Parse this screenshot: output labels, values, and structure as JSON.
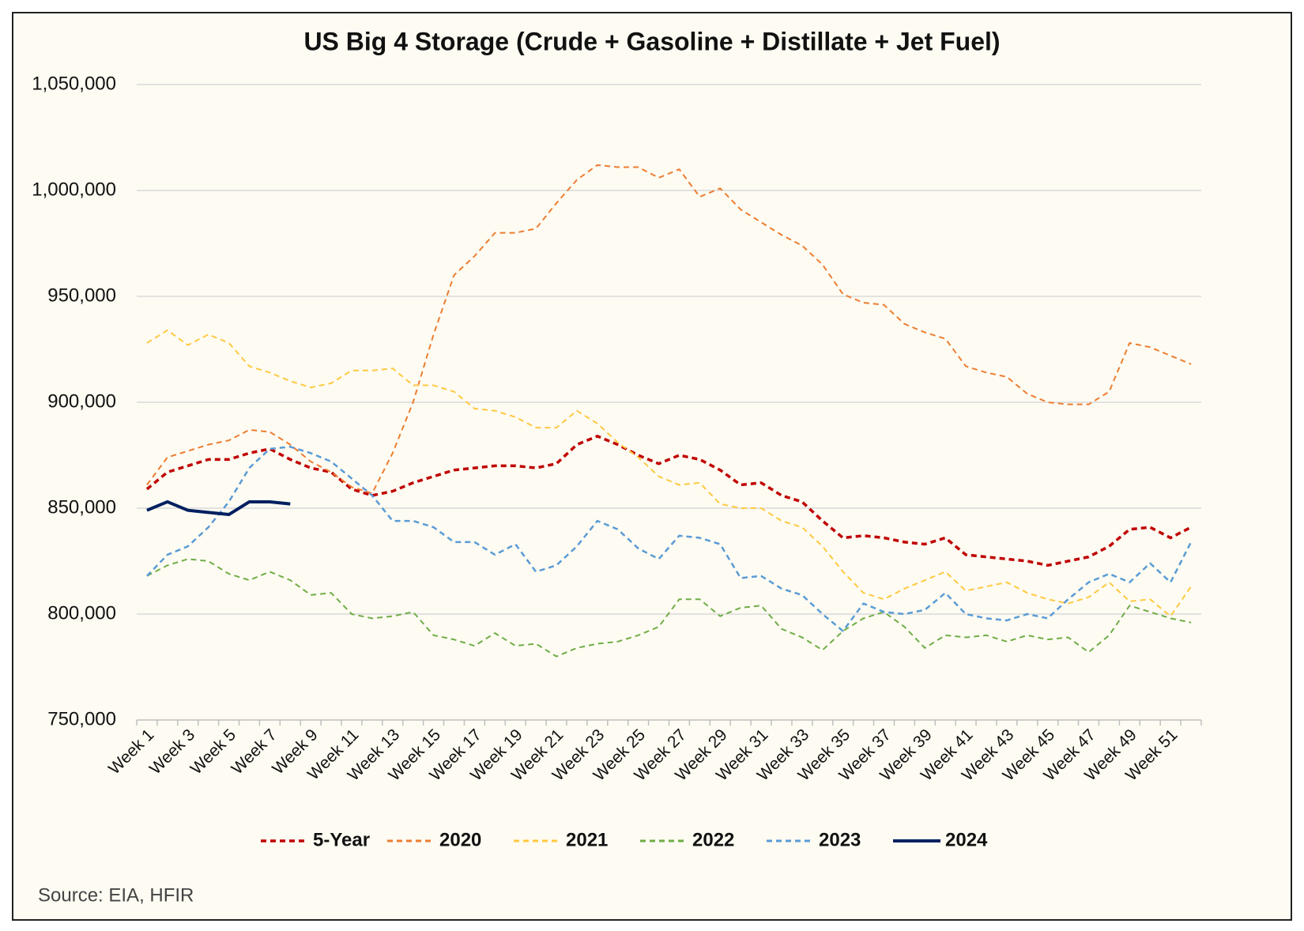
{
  "chart_data": {
    "type": "line",
    "title": "US Big 4 Storage (Crude + Gasoline + Distillate + Jet Fuel)",
    "source": "Source: EIA, HFIR",
    "categories": [
      "Week 1",
      null,
      "Week 3",
      null,
      "Week 5",
      null,
      "Week 7",
      null,
      "Week 9",
      null,
      "Week 11",
      null,
      "Week 13",
      null,
      "Week 15",
      null,
      "Week 17",
      null,
      "Week 19",
      null,
      "Week 21",
      null,
      "Week 23",
      null,
      "Week 25",
      null,
      "Week 27",
      null,
      "Week 29",
      null,
      "Week 31",
      null,
      "Week 33",
      null,
      "Week 35",
      null,
      "Week 37",
      null,
      "Week 39",
      null,
      "Week 41",
      null,
      "Week 43",
      null,
      "Week 45",
      null,
      "Week 47",
      null,
      "Week 49",
      null,
      "Week 51",
      null
    ],
    "ylim": [
      750000,
      1050000
    ],
    "yticks": [
      {
        "value": 750000,
        "label": "750,000"
      },
      {
        "value": 800000,
        "label": "800,000"
      },
      {
        "value": 850000,
        "label": "850,000"
      },
      {
        "value": 900000,
        "label": "900,000"
      },
      {
        "value": 950000,
        "label": "950,000"
      },
      {
        "value": 1000000,
        "label": "1,000,000"
      },
      {
        "value": 1050000,
        "label": "1,050,000"
      }
    ],
    "grid": true,
    "legend": "bottom",
    "series": [
      {
        "name": "5-Year",
        "color": "#c00000",
        "style": "dashed",
        "width": 3.5,
        "values": [
          859000,
          867000,
          870000,
          873000,
          873000,
          876000,
          878000,
          873000,
          869000,
          867000,
          859000,
          856000,
          858000,
          862000,
          865000,
          868000,
          869000,
          870000,
          870000,
          869000,
          871000,
          880000,
          884000,
          880000,
          875000,
          871000,
          875000,
          873000,
          868000,
          861000,
          862000,
          856000,
          853000,
          844000,
          836000,
          837000,
          836000,
          834000,
          833000,
          836000,
          828000,
          827000,
          826000,
          825000,
          823000,
          825000,
          827000,
          832000,
          840000,
          841000,
          836000,
          841000
        ]
      },
      {
        "name": "2020",
        "color": "#ed7d31",
        "style": "dashed",
        "width": 2,
        "values": [
          861000,
          874000,
          877000,
          880000,
          882000,
          887000,
          886000,
          880000,
          872000,
          867000,
          860000,
          857000,
          876000,
          900000,
          932000,
          960000,
          969000,
          980000,
          980000,
          982000,
          994000,
          1005000,
          1012000,
          1011000,
          1011000,
          1006000,
          1010000,
          997000,
          1001000,
          991000,
          985000,
          979000,
          974000,
          965000,
          951000,
          947000,
          946000,
          937000,
          933000,
          930000,
          917000,
          914000,
          912000,
          904000,
          900000,
          899000,
          899000,
          905000,
          928000,
          926000,
          922000,
          918000
        ]
      },
      {
        "name": "2021",
        "color": "#ffc940",
        "style": "dashed",
        "width": 2,
        "values": [
          928000,
          934000,
          927000,
          932000,
          928000,
          917000,
          914000,
          910000,
          907000,
          909000,
          915000,
          915000,
          916000,
          908000,
          908000,
          905000,
          897000,
          896000,
          893000,
          888000,
          888000,
          896000,
          890000,
          881000,
          874000,
          865000,
          861000,
          862000,
          852000,
          850000,
          850000,
          844000,
          841000,
          832000,
          820000,
          810000,
          807000,
          812000,
          816000,
          820000,
          811000,
          813000,
          815000,
          810000,
          807000,
          805000,
          808000,
          815000,
          806000,
          807000,
          799000,
          813000
        ]
      },
      {
        "name": "2022",
        "color": "#70ad47",
        "style": "dashed",
        "width": 2,
        "values": [
          818000,
          823000,
          826000,
          825000,
          819000,
          816000,
          820000,
          816000,
          809000,
          810000,
          800000,
          798000,
          799000,
          801000,
          790000,
          788000,
          785000,
          791000,
          785000,
          786000,
          780000,
          784000,
          786000,
          787000,
          790000,
          794000,
          807000,
          807000,
          799000,
          803000,
          804000,
          793000,
          789000,
          783000,
          792000,
          798000,
          801000,
          794000,
          784000,
          790000,
          789000,
          790000,
          787000,
          790000,
          788000,
          789000,
          782000,
          790000,
          804000,
          801000,
          798000,
          796000
        ]
      },
      {
        "name": "2023",
        "color": "#5b9bd5",
        "style": "dashed",
        "width": 2.5,
        "values": [
          818000,
          828000,
          832000,
          841000,
          853000,
          869000,
          878000,
          879000,
          876000,
          872000,
          864000,
          856000,
          844000,
          844000,
          841000,
          834000,
          834000,
          828000,
          833000,
          820000,
          823000,
          832000,
          844000,
          840000,
          831000,
          826000,
          837000,
          836000,
          833000,
          817000,
          818000,
          812000,
          809000,
          800000,
          792000,
          805000,
          801000,
          800000,
          802000,
          810000,
          800000,
          798000,
          797000,
          800000,
          798000,
          807000,
          815000,
          819000,
          815000,
          824000,
          815000,
          834000
        ]
      },
      {
        "name": "2024",
        "color": "#002060",
        "style": "solid",
        "width": 4,
        "values": [
          849000,
          853000,
          849000,
          848000,
          847000,
          853000,
          853000,
          852000,
          null,
          null,
          null,
          null,
          null,
          null,
          null,
          null,
          null,
          null,
          null,
          null,
          null,
          null,
          null,
          null,
          null,
          null,
          null,
          null,
          null,
          null,
          null,
          null,
          null,
          null,
          null,
          null,
          null,
          null,
          null,
          null,
          null,
          null,
          null,
          null,
          null,
          null,
          null,
          null,
          null,
          null,
          null,
          null
        ]
      }
    ]
  }
}
